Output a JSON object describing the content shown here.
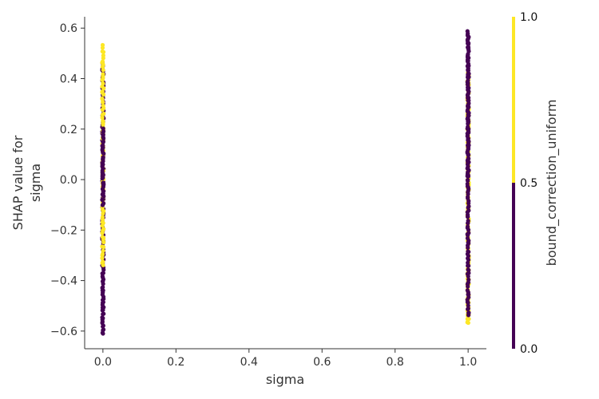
{
  "chart_data": {
    "type": "scatter",
    "title": "",
    "xlabel": "sigma",
    "ylabel_lines": [
      "SHAP value for",
      "sigma"
    ],
    "xlim": [
      -0.05,
      1.05
    ],
    "ylim": [
      -0.67,
      0.645
    ],
    "x_ticks": [
      0.0,
      0.2,
      0.4,
      0.6,
      0.8,
      1.0
    ],
    "x_tick_labels": [
      "0.0",
      "0.2",
      "0.4",
      "0.6",
      "0.8",
      "1.0"
    ],
    "y_ticks": [
      -0.6,
      -0.4,
      -0.2,
      0.0,
      0.2,
      0.4,
      0.6
    ],
    "y_tick_labels": [
      "−0.6",
      "−0.4",
      "−0.2",
      "0.0",
      "0.2",
      "0.4",
      "0.6"
    ],
    "grid": false,
    "color_feature": "bound_correction_uniform",
    "colorbar": {
      "label": "bound_correction_uniform",
      "ticks": [
        0.0,
        0.5,
        1.0
      ],
      "tick_labels": [
        "0.0",
        "0.5",
        "1.0"
      ],
      "colors": {
        "low": "#440154",
        "high": "#fde725"
      }
    },
    "series": [
      {
        "color_value": 0,
        "points": [
          {
            "x": 0.0,
            "y_range": [
              -0.61,
              0.46
            ]
          },
          {
            "x": 1.0,
            "y_range": [
              -0.54,
              0.585
            ]
          }
        ]
      },
      {
        "color_value": 1,
        "points": [
          {
            "x": 0.0,
            "y_range": [
              -0.34,
              0.53
            ]
          },
          {
            "x": 1.0,
            "y_range": [
              -0.57,
              0.42
            ]
          }
        ]
      }
    ]
  }
}
